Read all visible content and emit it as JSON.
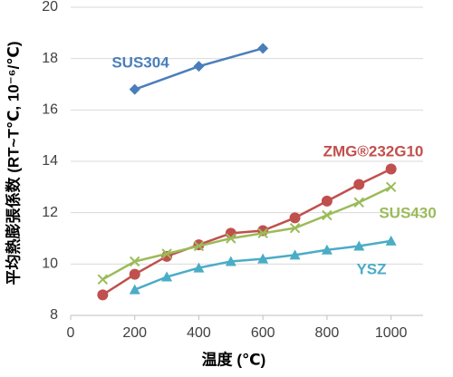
{
  "chart_data": {
    "type": "line",
    "y_label": "平均熱膨張係数 (RT~T℃, 10⁻⁶/℃)",
    "x_label": "温度 (℃)",
    "xlim": [
      0,
      1100
    ],
    "xticks": [
      0,
      200,
      400,
      600,
      800,
      1000
    ],
    "ylim": [
      8,
      20
    ],
    "yticks": [
      8,
      10,
      12,
      14,
      16,
      18,
      20
    ],
    "grid": true,
    "series": [
      {
        "name": "SUS304",
        "color": "#4a7ebb",
        "marker": "diamond",
        "x": [
          200,
          400,
          600
        ],
        "values": [
          16.8,
          17.7,
          18.4
        ]
      },
      {
        "name": "ZMG®232G10",
        "color": "#c0504d",
        "marker": "circle",
        "x": [
          100,
          200,
          300,
          400,
          500,
          600,
          700,
          800,
          900,
          1000
        ],
        "values": [
          8.8,
          9.6,
          10.3,
          10.75,
          11.2,
          11.3,
          11.8,
          12.45,
          13.1,
          13.7
        ]
      },
      {
        "name": "SUS430",
        "color": "#9bbb59",
        "marker": "x",
        "x": [
          100,
          200,
          300,
          400,
          500,
          600,
          700,
          800,
          900,
          1000
        ],
        "values": [
          9.4,
          10.1,
          10.4,
          10.7,
          11.0,
          11.2,
          11.4,
          11.9,
          12.4,
          13.0
        ]
      },
      {
        "name": "YSZ",
        "color": "#4bacc6",
        "marker": "triangle",
        "x": [
          200,
          300,
          400,
          500,
          600,
          700,
          800,
          900,
          1000
        ],
        "values": [
          9.0,
          9.5,
          9.85,
          10.1,
          10.2,
          10.35,
          10.55,
          10.7,
          10.9
        ]
      }
    ]
  }
}
